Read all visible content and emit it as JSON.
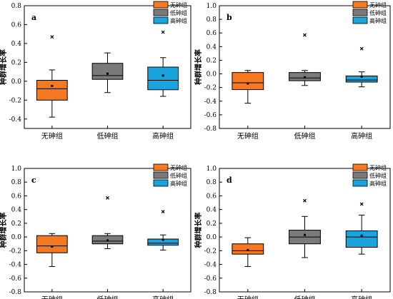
{
  "legend_labels": [
    "无砷组",
    "低砷组",
    "高砷组"
  ],
  "colors": {
    "无砷组": "#f47920",
    "低砷组": "#7a7a7a",
    "高砷组": "#1aa3dc"
  },
  "chart_data": [
    {
      "type": "box",
      "panel_label": "a",
      "ylabel": "种群增长率",
      "categories": [
        "无砷组",
        "低砷组",
        "高砷组"
      ],
      "ylim": [
        -0.5,
        0.8
      ],
      "yticks": [
        -0.4,
        -0.2,
        0.0,
        0.2,
        0.4,
        0.6,
        0.8
      ],
      "legend_position": "top-right",
      "boxes": [
        {
          "category": "无砷组",
          "whisker_low": -0.38,
          "q1": -0.2,
          "median": -0.08,
          "q3": 0.01,
          "whisker_high": 0.12,
          "mean": -0.05,
          "outliers": [
            0.47
          ]
        },
        {
          "category": "低砷组",
          "whisker_low": -0.12,
          "q1": 0.02,
          "median": 0.06,
          "q3": 0.19,
          "whisker_high": 0.3,
          "mean": 0.08,
          "outliers": []
        },
        {
          "category": "高砷组",
          "whisker_low": -0.16,
          "q1": -0.09,
          "median": 0.01,
          "q3": 0.15,
          "whisker_high": 0.25,
          "mean": 0.06,
          "outliers": [
            0.52
          ]
        }
      ]
    },
    {
      "type": "box",
      "panel_label": "b",
      "ylabel": "种群增长率",
      "categories": [
        "无砷组",
        "低砷组",
        "高砷组"
      ],
      "ylim": [
        -0.8,
        1.0
      ],
      "yticks": [
        -0.8,
        -0.6,
        -0.4,
        -0.2,
        0.0,
        0.2,
        0.4,
        0.6,
        0.8,
        1.0
      ],
      "legend_position": "top-right",
      "boxes": [
        {
          "category": "无砷组",
          "whisker_low": -0.43,
          "q1": -0.23,
          "median": -0.13,
          "q3": 0.02,
          "whisker_high": 0.05,
          "mean": -0.14,
          "outliers": []
        },
        {
          "category": "低砷组",
          "whisker_low": -0.17,
          "q1": -0.1,
          "median": -0.06,
          "q3": 0.02,
          "whisker_high": 0.05,
          "mean": -0.05,
          "outliers": [
            0.57
          ]
        },
        {
          "category": "高砷组",
          "whisker_low": -0.19,
          "q1": -0.12,
          "median": -0.09,
          "q3": -0.03,
          "whisker_high": 0.03,
          "mean": -0.04,
          "outliers": [
            0.37
          ]
        }
      ]
    },
    {
      "type": "box",
      "panel_label": "c",
      "ylabel": "种群增长率",
      "categories": [
        "无砷组",
        "低砷组",
        "高砷组"
      ],
      "ylim": [
        -0.8,
        1.0
      ],
      "yticks": [
        -0.8,
        -0.6,
        -0.4,
        -0.2,
        0.0,
        0.2,
        0.4,
        0.6,
        0.8,
        1.0
      ],
      "legend_position": "top-right",
      "boxes": [
        {
          "category": "无砷组",
          "whisker_low": -0.43,
          "q1": -0.23,
          "median": -0.13,
          "q3": 0.02,
          "whisker_high": 0.05,
          "mean": -0.14,
          "outliers": []
        },
        {
          "category": "低砷组",
          "whisker_low": -0.17,
          "q1": -0.1,
          "median": -0.06,
          "q3": 0.02,
          "whisker_high": 0.05,
          "mean": -0.05,
          "outliers": [
            0.57
          ]
        },
        {
          "category": "高砷组",
          "whisker_low": -0.19,
          "q1": -0.12,
          "median": -0.09,
          "q3": -0.03,
          "whisker_high": 0.03,
          "mean": -0.04,
          "outliers": [
            0.37
          ]
        }
      ]
    },
    {
      "type": "box",
      "panel_label": "d",
      "ylabel": "种群增长率",
      "categories": [
        "无砷组",
        "低砷组",
        "高砷组"
      ],
      "ylim": [
        -0.8,
        1.0
      ],
      "yticks": [
        -0.8,
        -0.6,
        -0.4,
        -0.2,
        0.0,
        0.2,
        0.4,
        0.6,
        0.8,
        1.0
      ],
      "legend_position": "top-right",
      "boxes": [
        {
          "category": "无砷组",
          "whisker_low": -0.43,
          "q1": -0.25,
          "median": -0.2,
          "q3": -0.1,
          "whisker_high": -0.01,
          "mean": -0.19,
          "outliers": []
        },
        {
          "category": "低砷组",
          "whisker_low": -0.3,
          "q1": -0.1,
          "median": 0.0,
          "q3": 0.1,
          "whisker_high": 0.3,
          "mean": 0.03,
          "outliers": [
            0.53
          ]
        },
        {
          "category": "高砷组",
          "whisker_low": -0.25,
          "q1": -0.15,
          "median": 0.0,
          "q3": 0.09,
          "whisker_high": 0.32,
          "mean": 0.02,
          "outliers": [
            0.48
          ]
        }
      ]
    }
  ]
}
